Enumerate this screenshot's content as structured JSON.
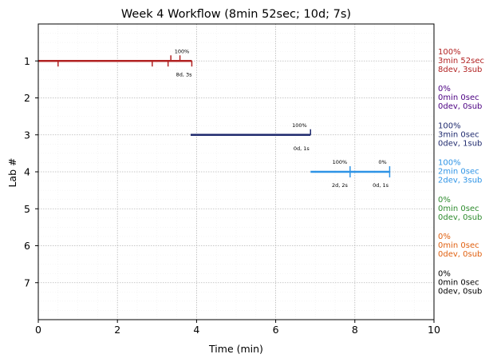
{
  "chart_data": {
    "type": "timeline",
    "title": "Week 4 Workflow (8min 52sec; 10d; 7s)",
    "xlabel": "Time (min)",
    "ylabel": "Lab #",
    "xlim": [
      0,
      10
    ],
    "ylim": [
      0,
      8
    ],
    "y_inverted": true,
    "x_ticks": [
      0,
      2,
      4,
      6,
      8,
      10
    ],
    "x_tick_labels": [
      "0",
      "2",
      "4",
      "6",
      "8",
      "10"
    ],
    "y_ticks": [
      1,
      2,
      3,
      4,
      5,
      6,
      7
    ],
    "y_tick_labels": [
      "1",
      "2",
      "3",
      "4",
      "5",
      "6",
      "7"
    ],
    "grid": true,
    "labs": [
      {
        "lab": 1,
        "color": "#b22222",
        "start": 0,
        "end": 3.88,
        "dev_ticks": [
          0.5,
          2.88,
          3.28,
          3.88
        ],
        "sub_ticks": [
          3.35,
          3.58
        ],
        "annotations": [
          {
            "x": 3.63,
            "pos": "above",
            "text": "100%"
          },
          {
            "x": 3.68,
            "pos": "below",
            "text": "8d, 3s"
          }
        ],
        "side_labels": [
          "100%",
          "3min 52sec",
          "8dev, 3sub"
        ]
      },
      {
        "lab": 2,
        "color": "#4b0082",
        "start": null,
        "end": null,
        "dev_ticks": [],
        "sub_ticks": [],
        "annotations": [],
        "side_labels": [
          "0%",
          "0min 0sec",
          "0dev, 0sub"
        ]
      },
      {
        "lab": 3,
        "color": "#1f2a6e",
        "start": 3.85,
        "end": 6.88,
        "dev_ticks": [],
        "sub_ticks": [
          6.88
        ],
        "annotations": [
          {
            "x": 6.6,
            "pos": "above",
            "text": "100%"
          },
          {
            "x": 6.65,
            "pos": "below",
            "text": "0d, 1s"
          }
        ],
        "side_labels": [
          "100%",
          "3min 0sec",
          "0dev, 1sub"
        ]
      },
      {
        "lab": 4,
        "color": "#2e94e6",
        "start": 6.88,
        "end": 8.88,
        "dev_ticks": [
          7.88,
          8.88
        ],
        "sub_ticks": [
          7.88,
          8.88
        ],
        "annotations": [
          {
            "x": 7.62,
            "pos": "above",
            "text": "100%"
          },
          {
            "x": 7.62,
            "pos": "below",
            "text": "2d, 2s"
          },
          {
            "x": 8.7,
            "pos": "above",
            "text": "0%"
          },
          {
            "x": 8.65,
            "pos": "below",
            "text": "0d, 1s"
          }
        ],
        "side_labels": [
          "100%",
          "2min 0sec",
          "2dev, 3sub"
        ]
      },
      {
        "lab": 5,
        "color": "#2e8b2e",
        "start": null,
        "end": null,
        "dev_ticks": [],
        "sub_ticks": [],
        "annotations": [],
        "side_labels": [
          "0%",
          "0min 0sec",
          "0dev, 0sub"
        ]
      },
      {
        "lab": 6,
        "color": "#e06010",
        "start": null,
        "end": null,
        "dev_ticks": [],
        "sub_ticks": [],
        "annotations": [],
        "side_labels": [
          "0%",
          "0min 0sec",
          "0dev, 0sub"
        ]
      },
      {
        "lab": 7,
        "color": "#000000",
        "start": null,
        "end": null,
        "dev_ticks": [],
        "sub_ticks": [],
        "annotations": [],
        "side_labels": [
          "0%",
          "0min 0sec",
          "0dev, 0sub"
        ]
      }
    ]
  }
}
